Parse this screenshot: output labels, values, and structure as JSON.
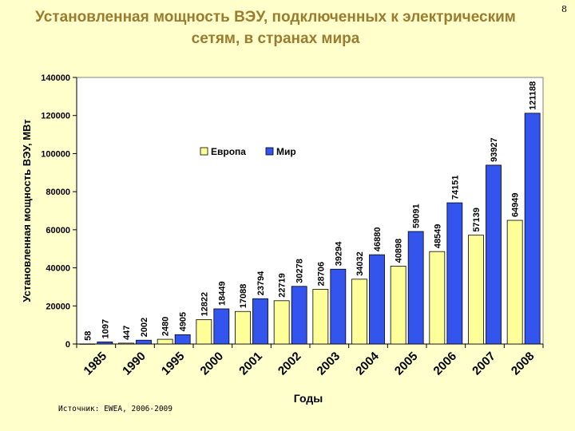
{
  "page_number": "8",
  "source": "Источник: EWEA, 2006-2009",
  "chart_data": {
    "type": "bar",
    "title": "Установленная мощность ВЭУ, подключенных к электрическим сетям, в странах мира",
    "xlabel": "Годы",
    "ylabel": "Установленная мощность ВЭУ, МВт",
    "ylim": [
      0,
      140000
    ],
    "yticks": [
      "0",
      "20000",
      "40000",
      "60000",
      "80000",
      "100000",
      "120000",
      "140000"
    ],
    "categories": [
      "1985",
      "1990",
      "1995",
      "2000",
      "2001",
      "2002",
      "2003",
      "2004",
      "2005",
      "2006",
      "2007",
      "2008"
    ],
    "series": [
      {
        "name": "Европа",
        "color": "#FFFF99",
        "values": [
          58,
          447,
          2480,
          12822,
          17088,
          22719,
          28706,
          34032,
          40898,
          48549,
          57139,
          64949
        ]
      },
      {
        "name": "Мир",
        "color": "#3355EE",
        "values": [
          1097,
          2002,
          4905,
          18449,
          23794,
          30278,
          39294,
          46880,
          59091,
          74151,
          93927,
          121188
        ]
      }
    ],
    "legend_position": "top-left",
    "grid": false
  }
}
